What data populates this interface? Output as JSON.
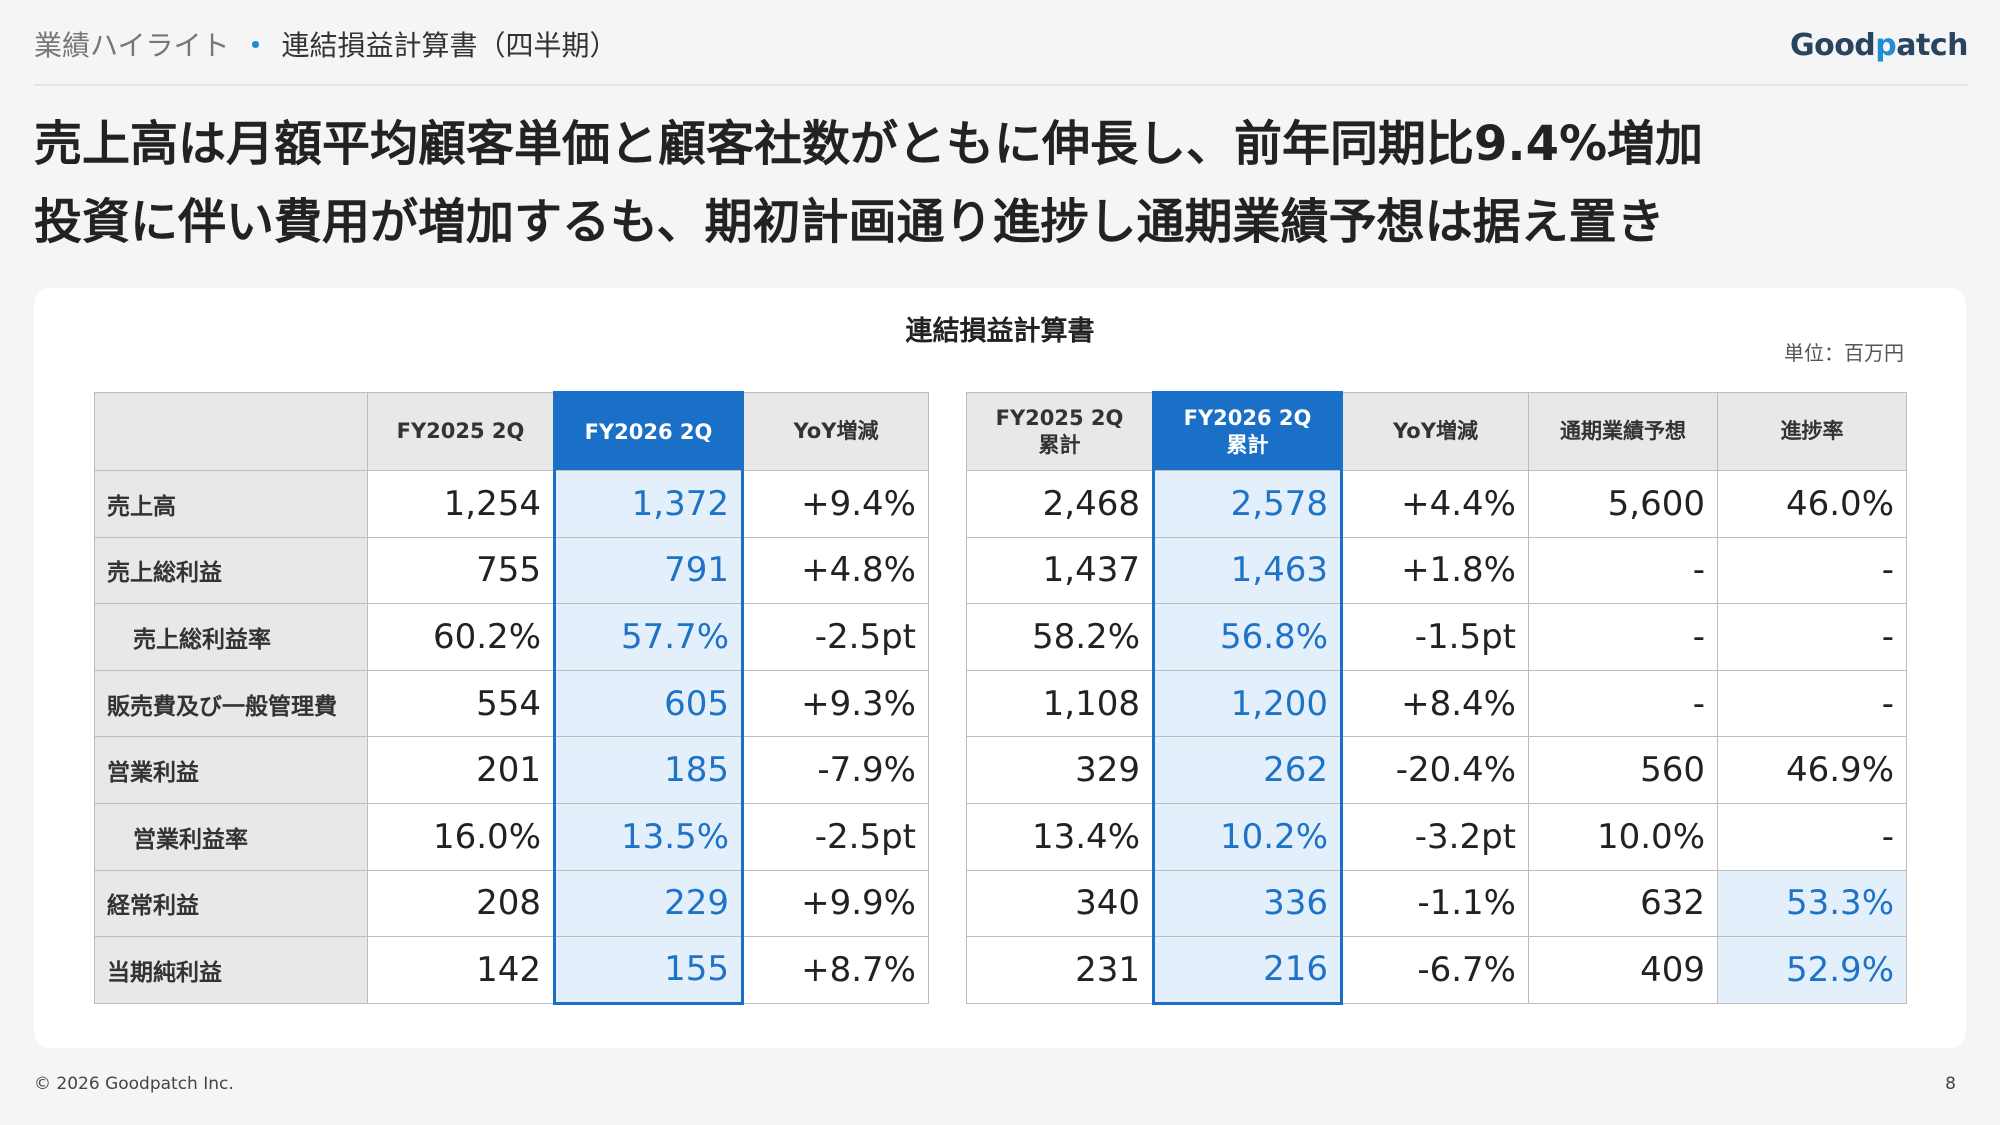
{
  "header": {
    "section": "業績ハイライト",
    "separator": "・",
    "title": "連結損益計算書（四半期）",
    "logo_text_pre": "Good",
    "logo_text_accent": "p",
    "logo_text_post": "atch"
  },
  "headline": {
    "line1": "売上高は月額平均顧客単価と顧客社数がともに伸長し、前年同期比9.4%増加",
    "line2": "投資に伴い費用が増加するも、期初計画通り進捗し通期業績予想は据え置き"
  },
  "card": {
    "title": "連結損益計算書",
    "unit": "単位：百万円"
  },
  "quarter_table": {
    "columns": [
      "",
      "FY2025 2Q",
      "FY2026 2Q",
      "YoY増減"
    ],
    "rows": [
      {
        "label": "売上高",
        "values": [
          "1,254",
          "1,372",
          "+9.4%"
        ]
      },
      {
        "label": "売上総利益",
        "values": [
          "755",
          "791",
          "+4.8%"
        ]
      },
      {
        "label": "売上総利益率",
        "values": [
          "60.2%",
          "57.7%",
          "-2.5pt"
        ]
      },
      {
        "label": "販売費及び一般管理費",
        "values": [
          "554",
          "605",
          "+9.3%"
        ]
      },
      {
        "label": "営業利益",
        "values": [
          "201",
          "185",
          "-7.9%"
        ]
      },
      {
        "label": "営業利益率",
        "values": [
          "16.0%",
          "13.5%",
          "-2.5pt"
        ]
      },
      {
        "label": "経常利益",
        "values": [
          "208",
          "229",
          "+9.9%"
        ]
      },
      {
        "label": "当期純利益",
        "values": [
          "142",
          "155",
          "+8.7%"
        ]
      }
    ]
  },
  "cumulative_table": {
    "columns": [
      {
        "line1": "FY2025 2Q",
        "line2": "累計"
      },
      {
        "line1": "FY2026 2Q",
        "line2": "累計"
      },
      {
        "line1": "YoY増減",
        "line2": ""
      },
      {
        "line1": "通期業績予想",
        "line2": ""
      },
      {
        "line1": "進捗率",
        "line2": ""
      }
    ],
    "rows": [
      {
        "values": [
          "2,468",
          "2,578",
          "+4.4%",
          "5,600",
          "46.0%"
        ]
      },
      {
        "values": [
          "1,437",
          "1,463",
          "+1.8%",
          "-",
          "-"
        ]
      },
      {
        "values": [
          "58.2%",
          "56.8%",
          "-1.5pt",
          "-",
          "-"
        ]
      },
      {
        "values": [
          "1,108",
          "1,200",
          "+8.4%",
          "-",
          "-"
        ]
      },
      {
        "values": [
          "329",
          "262",
          "-20.4%",
          "560",
          "46.9%"
        ]
      },
      {
        "values": [
          "13.4%",
          "10.2%",
          "-3.2pt",
          "10.0%",
          "-"
        ]
      },
      {
        "values": [
          "340",
          "336",
          "-1.1%",
          "632",
          "53.3%"
        ]
      },
      {
        "values": [
          "231",
          "216",
          "-6.7%",
          "409",
          "52.9%"
        ]
      }
    ]
  },
  "footer": {
    "copyright": "© 2026 Goodpatch Inc.",
    "page": "8"
  },
  "colors": {
    "accent": "#1a6fc6",
    "highlight_bg": "#e3f0fb",
    "header_bg": "#e8e8e8"
  }
}
